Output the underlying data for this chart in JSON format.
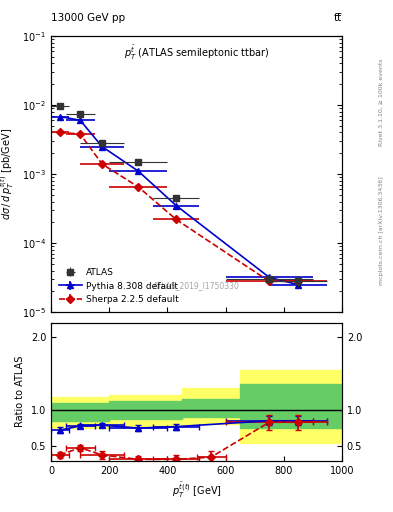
{
  "title_left": "13000 GeV pp",
  "title_right": "tt̅",
  "right_label_top": "Rivet 3.1.10, ≥ 100k events",
  "right_label_bot": "mcplots.cern.ch [arXiv:1306.3436]",
  "main_label": "p$_T^{\\bar{t}}$ (ATLAS semileptonic ttbar)",
  "watermark": "ATLAS_2019_I1750330",
  "ylabel_main": "dσ / d p_T^{tbar(t)} [pb/GeV]",
  "ylabel_ratio": "Ratio to ATLAS",
  "xlabel": "p_T^{tbar(t)} [GeV]",
  "xlim": [
    0,
    1000
  ],
  "main_ylim": [
    1e-05,
    0.1
  ],
  "ratio_ylim": [
    0.3,
    2.2
  ],
  "ratio_yticks": [
    0.5,
    1.0,
    2.0
  ],
  "atlas_x": [
    30,
    100,
    175,
    300,
    430,
    750,
    850
  ],
  "atlas_y": [
    0.0095,
    0.0075,
    0.0028,
    0.0015,
    0.00045,
    3e-05,
    2.8e-05
  ],
  "atlas_xerr": [
    30,
    50,
    75,
    100,
    80,
    150,
    100
  ],
  "atlas_yerr": [
    0.0005,
    0.0005,
    0.0002,
    0.00015,
    5e-05,
    5e-06,
    5e-06
  ],
  "pythia_x": [
    30,
    100,
    175,
    300,
    430,
    750,
    850
  ],
  "pythia_y": [
    0.0068,
    0.006,
    0.0025,
    0.0011,
    0.00035,
    3.2e-05,
    2.5e-05
  ],
  "pythia_xerr": [
    30,
    50,
    75,
    100,
    80,
    150,
    100
  ],
  "pythia_yerr": [
    0.0001,
    0.0001,
    5e-05,
    2e-05,
    5e-06,
    5e-07,
    5e-07
  ],
  "sherpa_x": [
    30,
    100,
    175,
    300,
    430,
    750,
    850
  ],
  "sherpa_y": [
    0.004,
    0.0038,
    0.0014,
    0.00065,
    0.00022,
    2.8e-05,
    2.8e-05
  ],
  "sherpa_xerr": [
    30,
    50,
    75,
    100,
    80,
    150,
    100
  ],
  "sherpa_yerr": [
    0.0001,
    0.0001,
    3e-05,
    1e-05,
    3e-06,
    5e-07,
    5e-07
  ],
  "pythia_ratio_x": [
    30,
    100,
    175,
    300,
    430,
    750,
    850
  ],
  "pythia_ratio_y": [
    0.72,
    0.78,
    0.79,
    0.75,
    0.77,
    0.85,
    0.85
  ],
  "pythia_ratio_yerr": [
    0.04,
    0.03,
    0.03,
    0.04,
    0.04,
    0.06,
    0.06
  ],
  "pythia_ratio_xerr": [
    30,
    50,
    75,
    100,
    80,
    150,
    100
  ],
  "sherpa_ratio_x": [
    30,
    100,
    175,
    300,
    430,
    550,
    750,
    850
  ],
  "sherpa_ratio_y": [
    0.38,
    0.48,
    0.38,
    0.32,
    0.32,
    0.35,
    0.83,
    0.83
  ],
  "sherpa_ratio_yerr": [
    0.04,
    0.04,
    0.06,
    0.05,
    0.06,
    0.08,
    0.1,
    0.1
  ],
  "sherpa_ratio_xerr": [
    30,
    50,
    75,
    100,
    80,
    50,
    150,
    100
  ],
  "band_x": [
    0,
    200,
    450,
    650,
    1000
  ],
  "band_green_lo": [
    0.85,
    0.88,
    0.9,
    0.75,
    0.75
  ],
  "band_green_hi": [
    1.1,
    1.12,
    1.15,
    1.35,
    1.35
  ],
  "band_yellow_lo": [
    0.75,
    0.78,
    0.8,
    0.55,
    0.55
  ],
  "band_yellow_hi": [
    1.18,
    1.2,
    1.3,
    1.55,
    1.55
  ],
  "atlas_color": "#333333",
  "pythia_color": "#0000cc",
  "sherpa_color": "#cc0000",
  "green_band_color": "#66cc66",
  "yellow_band_color": "#ffff66"
}
